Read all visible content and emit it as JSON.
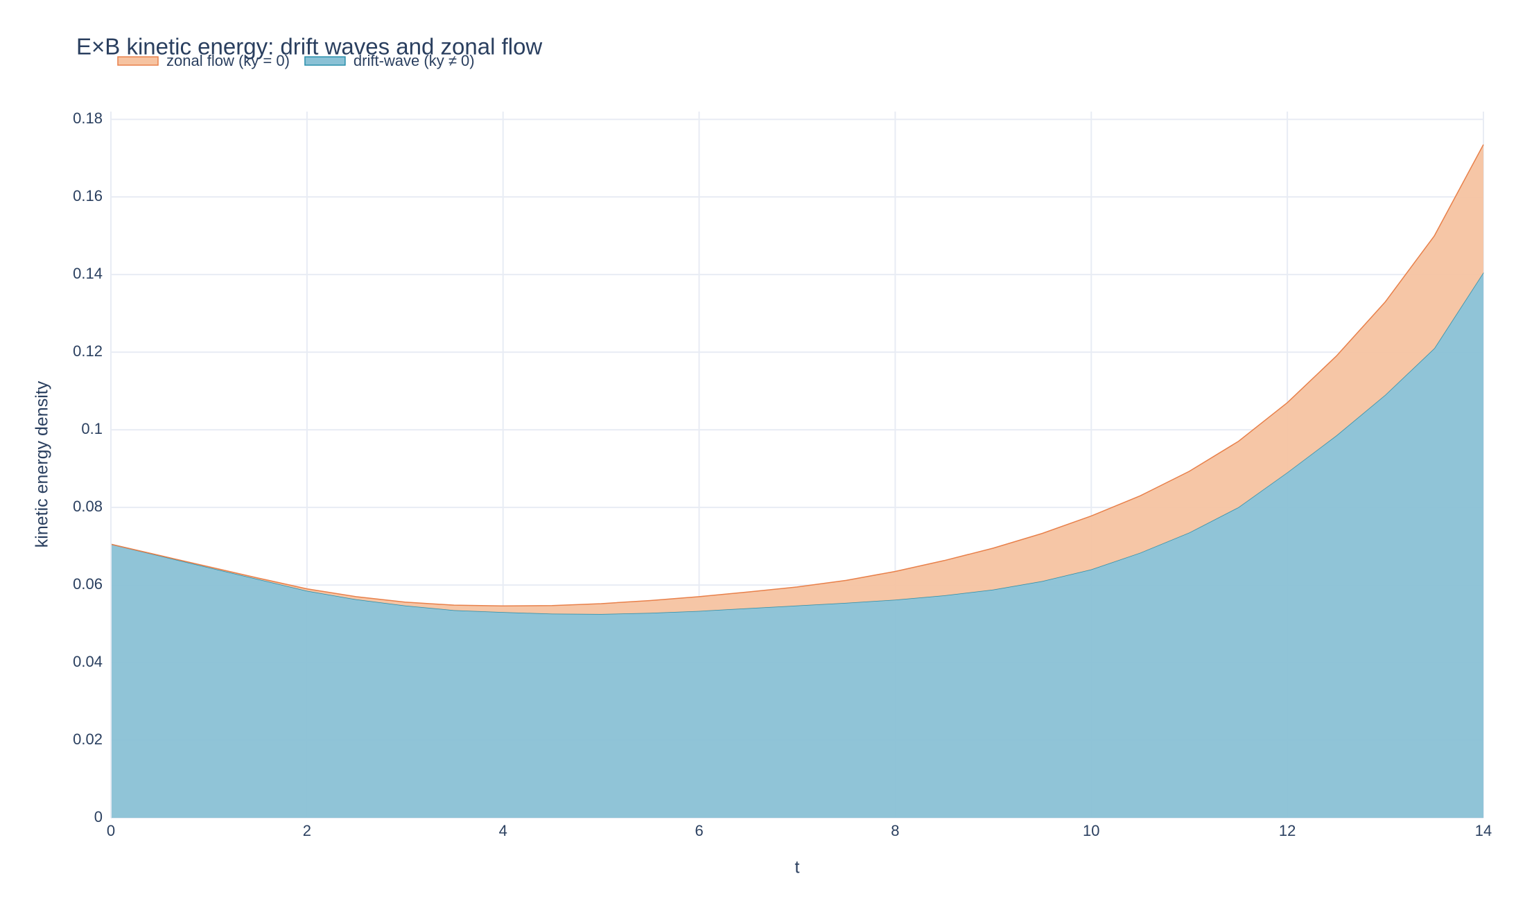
{
  "chart_data": {
    "type": "stacked_area",
    "title": "E×B kinetic energy: drift waves and zonal flow",
    "x_label": "t",
    "y_label": "kinetic energy density",
    "x": [
      0,
      0.5,
      1,
      1.5,
      2,
      2.5,
      3,
      3.5,
      4,
      4.5,
      5,
      5.5,
      6,
      6.5,
      7,
      7.5,
      8,
      8.5,
      9,
      9.5,
      10,
      10.5,
      11,
      11.5,
      12,
      12.5,
      13,
      13.5,
      14
    ],
    "series": [
      {
        "name": "zonal flow (ky = 0)",
        "color": "#e8804a",
        "fill": "#f6c3a1",
        "values": [
          0,
          0.0001,
          0.0002,
          0.0003,
          0.0005,
          0.0007,
          0.0009,
          0.0013,
          0.0016,
          0.0021,
          0.0027,
          0.0032,
          0.0037,
          0.0042,
          0.0048,
          0.0058,
          0.0073,
          0.009,
          0.0107,
          0.0123,
          0.0138,
          0.0147,
          0.0158,
          0.017,
          0.018,
          0.0205,
          0.024,
          0.029,
          0.033
        ]
      },
      {
        "name": "drift-wave (ky ≠ 0)",
        "color": "#2a8fab",
        "fill": "#8ac1d5",
        "values": [
          0.0705,
          0.0675,
          0.0645,
          0.0615,
          0.0585,
          0.0563,
          0.0547,
          0.0535,
          0.053,
          0.0526,
          0.0525,
          0.0528,
          0.0533,
          0.054,
          0.0547,
          0.0554,
          0.0562,
          0.0573,
          0.0588,
          0.061,
          0.064,
          0.0683,
          0.0735,
          0.08,
          0.089,
          0.0985,
          0.109,
          0.121,
          0.1405
        ]
      }
    ],
    "xlim": [
      0,
      14
    ],
    "xticks": [
      0,
      2,
      4,
      6,
      8,
      10,
      12,
      14
    ],
    "ylim": [
      0,
      0.182
    ],
    "yticks": [
      0,
      0.02,
      0.04,
      0.06,
      0.08,
      0.1,
      0.12,
      0.14,
      0.16,
      0.18
    ],
    "grid": true,
    "legend": "top-left"
  }
}
